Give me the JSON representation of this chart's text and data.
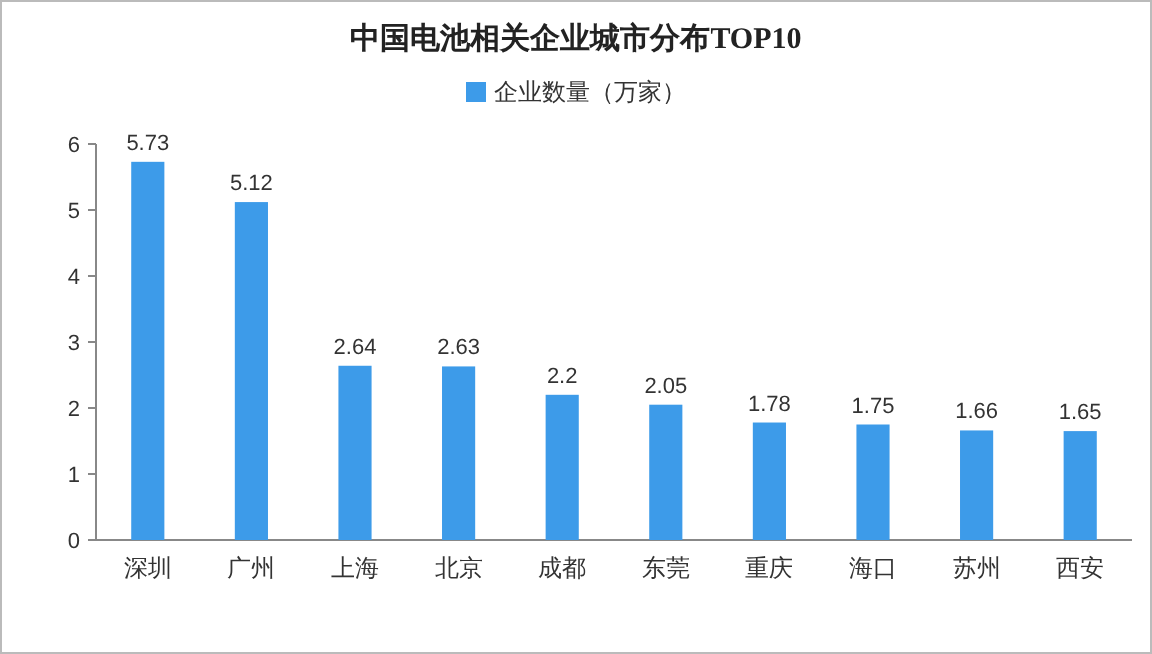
{
  "chart_data": {
    "type": "bar",
    "title": "中国电池相关企业城市分布TOP10",
    "categories": [
      "深圳",
      "广州",
      "上海",
      "北京",
      "成都",
      "东莞",
      "重庆",
      "海口",
      "苏州",
      "西安"
    ],
    "series": [
      {
        "name": "企业数量（万家）",
        "color": "#3d9be9",
        "values": [
          5.73,
          5.12,
          2.64,
          2.63,
          2.2,
          2.05,
          1.78,
          1.75,
          1.66,
          1.65
        ]
      }
    ],
    "ylim": [
      0,
      6
    ],
    "yticks": [
      0,
      1,
      2,
      3,
      4,
      5,
      6
    ],
    "data_labels": true,
    "legend": "top",
    "grid": false
  }
}
